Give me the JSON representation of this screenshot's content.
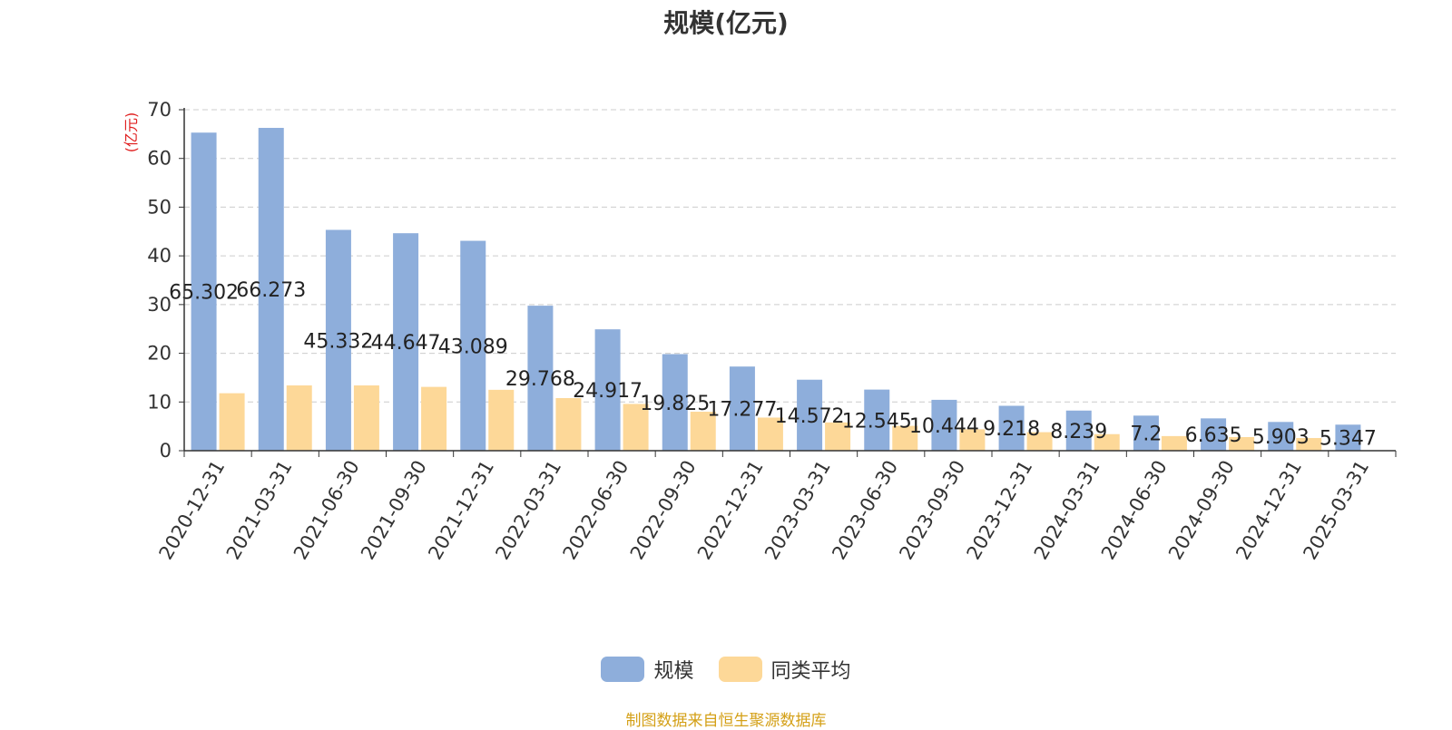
{
  "chart_data": {
    "type": "bar",
    "title": "规模(亿元)",
    "ylabel": "(亿元)",
    "ylim": [
      0,
      70
    ],
    "yticks": [
      0,
      10,
      20,
      30,
      40,
      50,
      60,
      70
    ],
    "grid": true,
    "legend_position": "bottom",
    "categories": [
      "2020-12-31",
      "2021-03-31",
      "2021-06-30",
      "2021-09-30",
      "2021-12-31",
      "2022-03-31",
      "2022-06-30",
      "2022-09-30",
      "2022-12-31",
      "2023-03-31",
      "2023-06-30",
      "2023-09-30",
      "2023-12-31",
      "2024-03-31",
      "2024-06-30",
      "2024-09-30",
      "2024-12-31",
      "2025-03-31"
    ],
    "series": [
      {
        "name": "规模",
        "color": "#8eaedb",
        "values": [
          65.302,
          66.273,
          45.332,
          44.647,
          43.089,
          29.768,
          24.917,
          19.825,
          17.277,
          14.572,
          12.545,
          10.444,
          9.218,
          8.239,
          7.2,
          6.635,
          5.903,
          5.347
        ],
        "labels": [
          "65.302",
          "66.273",
          "45.332",
          "44.647",
          "43.089",
          "29.768",
          "24.917",
          "19.825",
          "17.277",
          "14.572",
          "12.545",
          "10.444",
          "9.218",
          "8.239",
          "7.2",
          "6.635",
          "5.903",
          "5.347"
        ]
      },
      {
        "name": "同类平均",
        "color": "#fdd898",
        "values": [
          11.8,
          13.4,
          13.4,
          13.1,
          12.5,
          10.8,
          9.6,
          8.0,
          6.8,
          5.8,
          5.1,
          4.4,
          3.8,
          3.4,
          3.0,
          2.8,
          2.6,
          null
        ]
      }
    ]
  },
  "source_note": "制图数据来自恒生聚源数据库"
}
